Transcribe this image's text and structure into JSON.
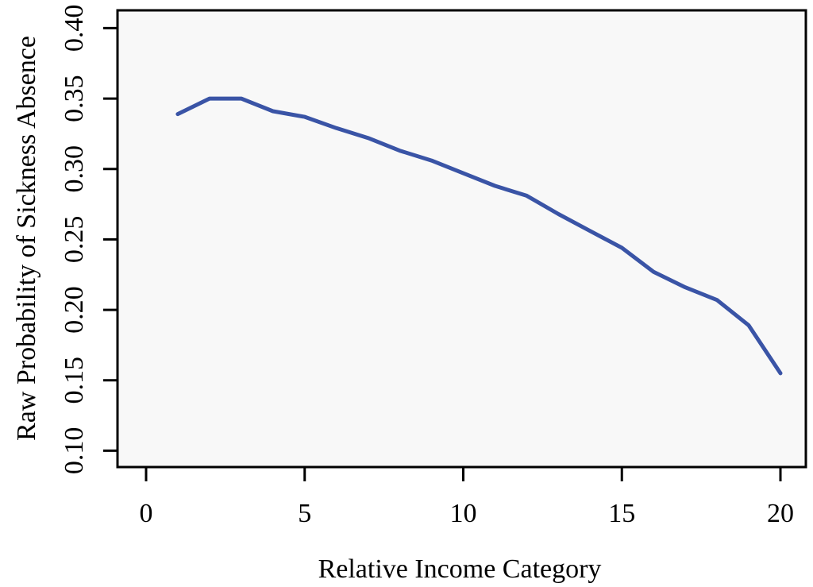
{
  "figure": {
    "background_color": "#ffffff",
    "text_color": "#000000"
  },
  "chart_data": {
    "type": "line",
    "title": "",
    "xlabel": "Relative Income Category",
    "ylabel": "Raw Probability of Sickness Absence",
    "x": [
      1,
      2,
      3,
      4,
      5,
      6,
      7,
      8,
      9,
      10,
      11,
      12,
      13,
      14,
      15,
      16,
      17,
      18,
      19,
      20
    ],
    "series": [
      {
        "name": "raw-probability-of-sickness-absence",
        "values": [
          0.339,
          0.35,
          0.35,
          0.341,
          0.337,
          0.329,
          0.322,
          0.313,
          0.306,
          0.297,
          0.288,
          0.281,
          0.268,
          0.256,
          0.244,
          0.227,
          0.216,
          0.207,
          0.189,
          0.155
        ]
      }
    ],
    "xlim": [
      0,
      20
    ],
    "ylim": [
      0.1,
      0.4
    ],
    "x_ticks": {
      "values": [
        0,
        5,
        10,
        15,
        20
      ],
      "labels": [
        "0",
        "5",
        "10",
        "15",
        "20"
      ]
    },
    "y_ticks": {
      "values": [
        0.4,
        0.35,
        0.3,
        0.25,
        0.2,
        0.15,
        0.1
      ],
      "labels": [
        "0.40",
        "0.35",
        "0.30",
        "0.25",
        "0.20",
        "0.15",
        "0.10"
      ]
    },
    "grid": false,
    "legend_position": "none",
    "line_color": "#3a54a6",
    "plot_background": "#f8f8f8",
    "frame_color": "#000000",
    "tick_color": "#000000"
  }
}
